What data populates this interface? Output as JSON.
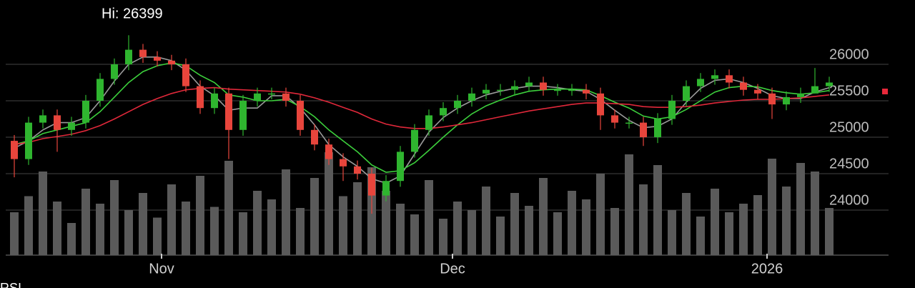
{
  "chart_data": {
    "type": "candlestick",
    "annotation": "Hi: 26399",
    "footer_label": "RSI",
    "x": [
      0,
      1,
      2,
      3,
      4,
      5,
      6,
      7,
      8,
      9,
      10,
      11,
      12,
      13,
      14,
      15,
      16,
      17,
      18,
      19,
      20,
      21,
      22,
      23,
      24,
      25,
      26,
      27,
      28,
      29,
      30,
      31,
      32,
      33,
      34,
      35,
      36,
      37,
      38,
      39,
      40,
      41,
      42,
      43,
      44,
      45,
      46,
      47,
      48,
      49,
      50,
      51,
      52,
      53,
      54,
      55,
      56,
      57
    ],
    "xlim": [
      -0.5,
      57.5
    ],
    "xticks": [
      {
        "value": 10.3,
        "label": "Nov"
      },
      {
        "value": 30.65,
        "label": "Dec"
      },
      {
        "value": 52.65,
        "label": "2026"
      }
    ],
    "ylim": [
      23600,
      26700
    ],
    "yticks": [
      24000,
      24500,
      25000,
      25500,
      26000
    ],
    "grid": true,
    "up_color": "#2fb52f",
    "down_color": "#e8453c",
    "open": [
      24950,
      24700,
      25200,
      25300,
      25100,
      25200,
      25500,
      25800,
      26000,
      26200,
      26100,
      26050,
      26000,
      25700,
      25400,
      25600,
      25100,
      25500,
      25600,
      25600,
      25500,
      25100,
      24900,
      24700,
      24600,
      24500,
      24200,
      24400,
      24800,
      25100,
      25300,
      25400,
      25500,
      25600,
      25650,
      25650,
      25700,
      25750,
      25650,
      25650,
      25650,
      25600,
      25300,
      25200,
      25200,
      25000,
      25250,
      25500,
      25700,
      25800,
      25850,
      25750,
      25650,
      25600,
      25450,
      25550,
      25600,
      25700
    ],
    "high": [
      25030,
      25280,
      25380,
      25380,
      25280,
      25580,
      25880,
      26080,
      26399,
      26280,
      26180,
      26130,
      26080,
      25780,
      25680,
      25680,
      25580,
      25680,
      25680,
      25680,
      25580,
      25180,
      24980,
      24780,
      24680,
      24580,
      24480,
      24880,
      25180,
      25380,
      25480,
      25580,
      25680,
      25730,
      25730,
      25780,
      25830,
      25830,
      25730,
      25730,
      25730,
      25680,
      25380,
      25280,
      25280,
      25330,
      25580,
      25780,
      25880,
      25930,
      25930,
      25830,
      25730,
      25680,
      25630,
      25680,
      25950,
      25830
    ],
    "low": [
      24450,
      24620,
      25120,
      24800,
      25020,
      25120,
      25420,
      25720,
      25920,
      26020,
      25970,
      25920,
      25620,
      25320,
      25320,
      24700,
      25020,
      25420,
      25520,
      25420,
      25020,
      24820,
      24620,
      24400,
      24420,
      23950,
      24120,
      24320,
      24720,
      25020,
      25220,
      25320,
      25420,
      25520,
      25570,
      25570,
      25620,
      25570,
      25570,
      25570,
      25520,
      25100,
      25120,
      25120,
      24880,
      24920,
      25170,
      25420,
      25620,
      25720,
      25670,
      25570,
      25520,
      25250,
      25370,
      25470,
      25620,
      25620
    ],
    "close": [
      24700,
      25200,
      25300,
      25100,
      25200,
      25500,
      25800,
      26000,
      26200,
      26100,
      26050,
      26000,
      25700,
      25400,
      25600,
      25100,
      25500,
      25600,
      25600,
      25500,
      25100,
      24900,
      24700,
      24600,
      24500,
      24200,
      24400,
      24800,
      25100,
      25300,
      25400,
      25500,
      25600,
      25650,
      25650,
      25700,
      25750,
      25650,
      25650,
      25650,
      25600,
      25300,
      25200,
      25200,
      25000,
      25250,
      25500,
      25700,
      25800,
      25850,
      25750,
      25650,
      25600,
      25450,
      25550,
      25600,
      25700,
      25750
    ],
    "series": [
      {
        "color": "#9a9a9a",
        "values": [
          24850,
          24950,
          25100,
          25200,
          25200,
          25270,
          25500,
          25770,
          26000,
          26100,
          26100,
          26050,
          25920,
          25700,
          25570,
          25370,
          25400,
          25400,
          25570,
          25570,
          25400,
          25170,
          24900,
          24730,
          24600,
          24430,
          24370,
          24470,
          24770,
          25070,
          25270,
          25400,
          25500,
          25580,
          25630,
          25670,
          25700,
          25700,
          25680,
          25650,
          25630,
          25520,
          25370,
          25230,
          25130,
          25150,
          25250,
          25480,
          25670,
          25780,
          25800,
          25750,
          25670,
          25570,
          25530,
          25530,
          25620,
          25680
        ]
      },
      {
        "color": "#3ccf3c",
        "values": [
          24900,
          24950,
          25050,
          25100,
          25150,
          25200,
          25350,
          25550,
          25750,
          25900,
          25980,
          26020,
          25980,
          25850,
          25750,
          25580,
          25550,
          25500,
          25500,
          25520,
          25420,
          25280,
          25100,
          24950,
          24800,
          24620,
          24520,
          24540,
          24650,
          24820,
          25000,
          25170,
          25320,
          25430,
          25510,
          25580,
          25630,
          25650,
          25660,
          25660,
          25650,
          25570,
          25480,
          25400,
          25290,
          25250,
          25280,
          25380,
          25500,
          25620,
          25680,
          25700,
          25690,
          25640,
          25610,
          25590,
          25610,
          25640
        ]
      },
      {
        "color": "#e0283a",
        "values": [
          24900,
          24930,
          24980,
          25010,
          25040,
          25090,
          25160,
          25250,
          25350,
          25450,
          25530,
          25600,
          25650,
          25670,
          25680,
          25660,
          25650,
          25640,
          25630,
          25620,
          25590,
          25540,
          25480,
          25410,
          25340,
          25250,
          25180,
          25140,
          25120,
          25120,
          25140,
          25170,
          25200,
          25240,
          25280,
          25320,
          25360,
          25390,
          25420,
          25450,
          25470,
          25470,
          25460,
          25450,
          25420,
          25410,
          25410,
          25420,
          25440,
          25470,
          25490,
          25510,
          25520,
          25520,
          25530,
          25540,
          25560,
          25580
        ]
      }
    ],
    "volume": {
      "color": "#5a5a5a",
      "ylim": [
        0,
        100
      ],
      "values": [
        40,
        55,
        78,
        50,
        30,
        62,
        48,
        70,
        42,
        58,
        35,
        66,
        50,
        74,
        45,
        88,
        40,
        60,
        52,
        80,
        44,
        72,
        96,
        55,
        68,
        82,
        60,
        48,
        38,
        70,
        34,
        50,
        42,
        64,
        36,
        58,
        46,
        72,
        40,
        60,
        52,
        76,
        44,
        94,
        66,
        84,
        42,
        58,
        36,
        62,
        40,
        48,
        56,
        90,
        64,
        86,
        78,
        44
      ]
    }
  }
}
